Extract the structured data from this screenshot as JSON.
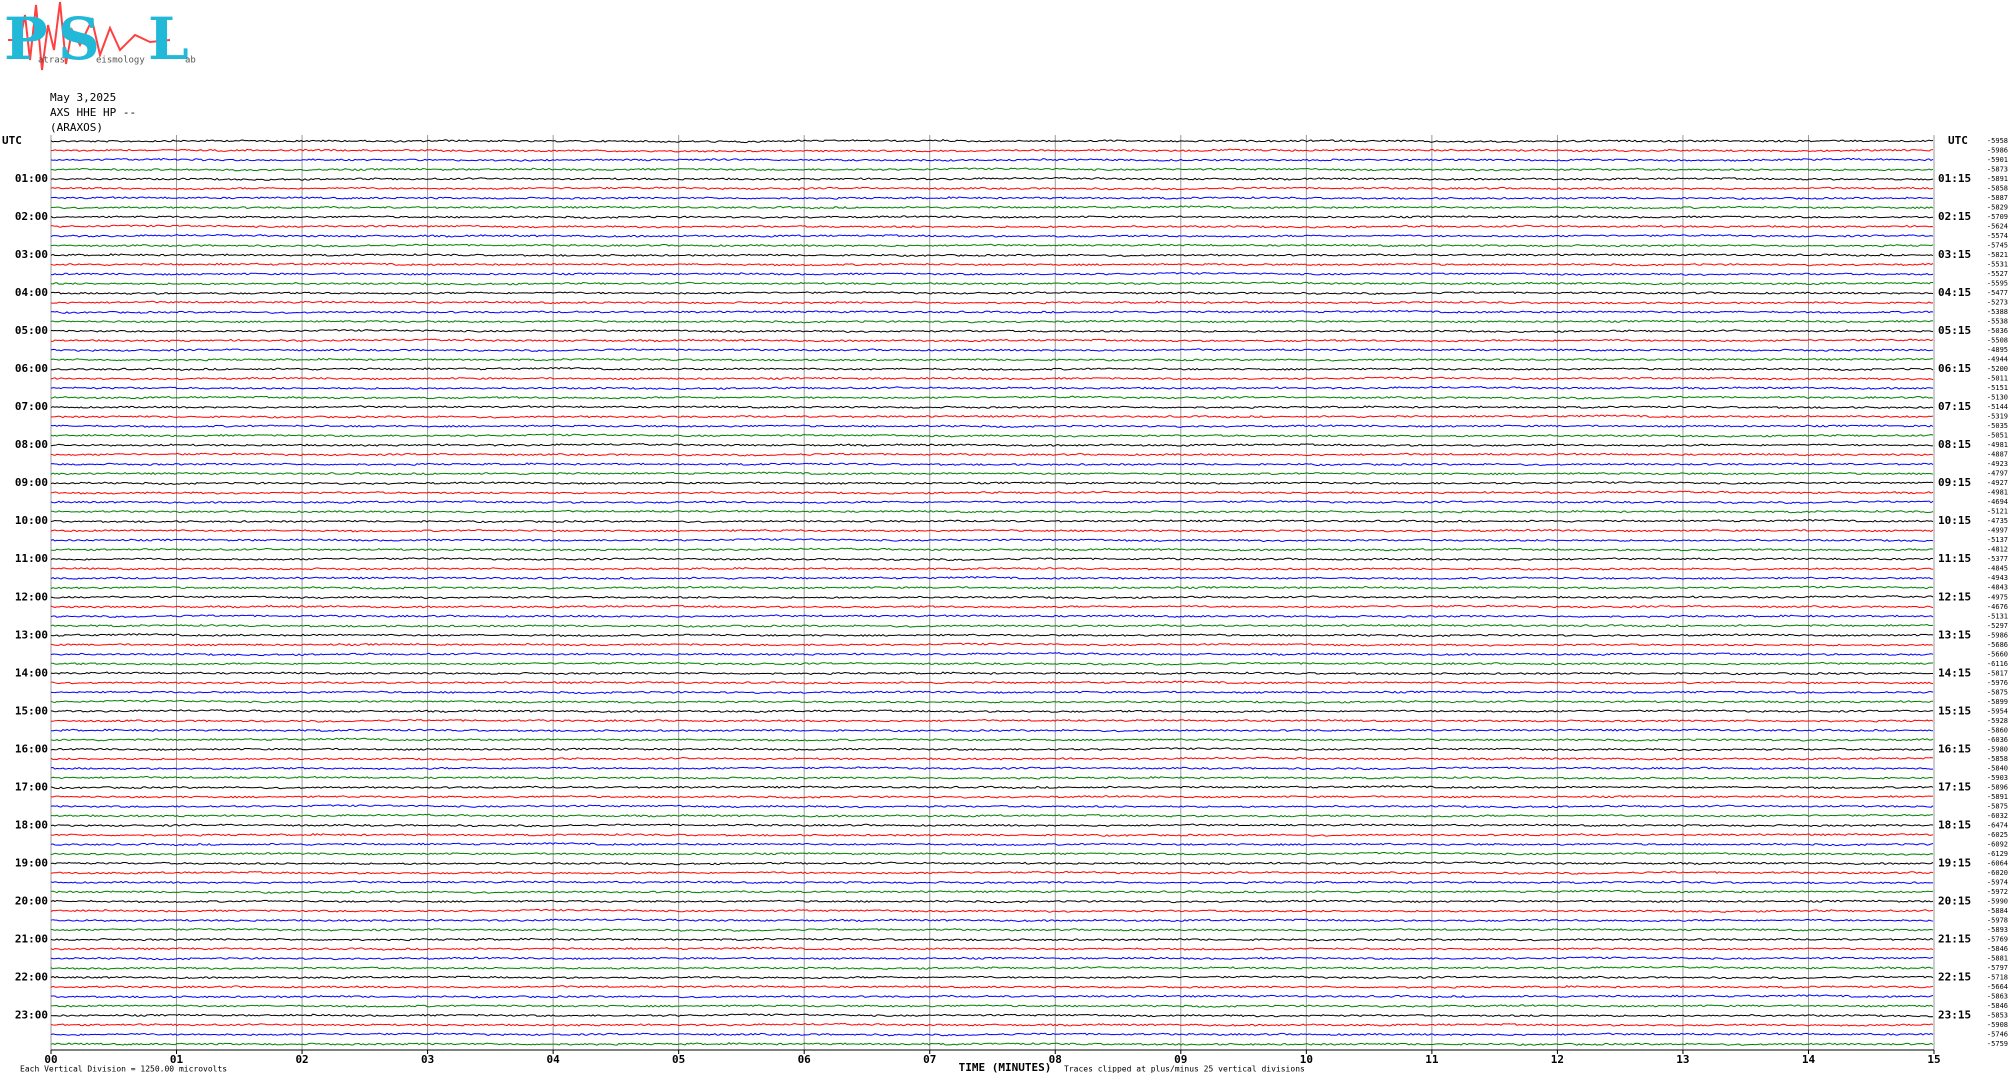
{
  "header": {
    "logo": {
      "p": "P",
      "p_rest": "atras",
      "s": "S",
      "s_rest": "eismology",
      "l": "L",
      "l_rest": "ab"
    },
    "date": "May 3,2025",
    "station": "AXS HHE HP --",
    "location": "(ARAXOS)"
  },
  "chart_data": {
    "type": "helicorder",
    "left_axis_label": "UTC",
    "right_axis_label": "UTC",
    "hour_labels_left": [
      "01:00",
      "02:00",
      "03:00",
      "04:00",
      "05:00",
      "06:00",
      "07:00",
      "08:00",
      "09:00",
      "10:00",
      "11:00",
      "12:00",
      "13:00",
      "14:00",
      "15:00",
      "16:00",
      "17:00",
      "18:00",
      "19:00",
      "20:00",
      "21:00",
      "22:00",
      "23:00"
    ],
    "hour_labels_right": [
      "01:15",
      "02:15",
      "03:15",
      "04:15",
      "05:15",
      "06:15",
      "07:15",
      "08:15",
      "09:15",
      "10:15",
      "11:15",
      "12:15",
      "13:15",
      "14:15",
      "15:15",
      "16:15",
      "17:15",
      "18:15",
      "19:15",
      "20:15",
      "21:15",
      "22:15",
      "23:15"
    ],
    "trace_offsets": [
      -5958,
      -5986,
      -5901,
      -5873,
      -5891,
      -5858,
      -5887,
      -5829,
      -5709,
      -5624,
      -5574,
      -5745,
      -5821,
      -5531,
      -5527,
      -5595,
      -5477,
      -5273,
      -5388,
      -5538,
      -5036,
      -5508,
      -4895,
      -4944,
      -5200,
      -5011,
      -5151,
      -5130,
      -5144,
      -5319,
      -5035,
      -5051,
      -4981,
      -4887,
      -4923,
      -4797,
      -4927,
      -4981,
      -4694,
      -5121,
      -4735,
      -4997,
      -5137,
      -4812,
      -5377,
      -4845,
      -4943,
      -4843,
      -4975,
      -4676,
      -5131,
      -5297,
      -5986,
      -5686,
      -5660,
      -6116,
      -5817,
      -5976,
      -5875,
      -5899,
      -5954,
      -5928,
      -5860,
      -6036,
      -5980,
      -5858,
      -5840,
      -5903,
      -5896,
      -5891,
      -5875,
      -6032,
      -6474,
      -6025,
      -6092,
      -6129,
      -6064,
      -6020,
      -5974,
      -5972,
      -5990,
      -5884,
      -5978,
      -5893,
      -5769,
      -5846,
      -5881,
      -5797,
      -5718,
      -5664,
      -5863,
      -5846,
      -5853,
      -5908,
      -5746,
      -5759
    ],
    "colors": [
      "#000000",
      "#ff0000",
      "#0000ff",
      "#008000"
    ],
    "xlim": [
      0,
      15
    ],
    "xticks": [
      {
        "value": 0,
        "label": "00"
      },
      {
        "value": 1,
        "label": "01"
      },
      {
        "value": 2,
        "label": "02"
      },
      {
        "value": 3,
        "label": "03"
      },
      {
        "value": 4,
        "label": "04"
      },
      {
        "value": 5,
        "label": "05"
      },
      {
        "value": 6,
        "label": "06"
      },
      {
        "value": 7,
        "label": "07"
      },
      {
        "value": 8,
        "label": "08"
      },
      {
        "value": 9,
        "label": "09"
      },
      10,
      11,
      12,
      13,
      14,
      15
    ],
    "grid": true,
    "xlabel": "TIME (MINUTES)",
    "scale_note": "Each Vertical Division = 1250.00 microvolts",
    "clip_note": "Traces clipped at plus/minus 25 vertical divisions"
  }
}
